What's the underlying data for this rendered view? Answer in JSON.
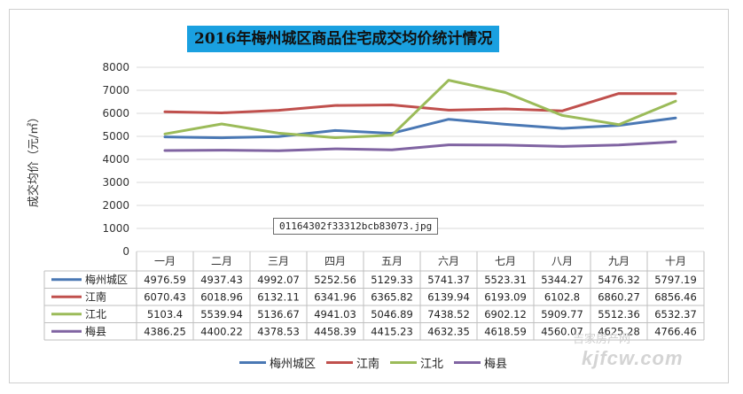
{
  "chart_data": {
    "type": "line",
    "title": "2016年梅州城区商品住宅成交均价统计情况",
    "ylabel": "成交均价（元/㎡）",
    "ylim": [
      0,
      8000
    ],
    "yticks": [
      0,
      1000,
      2000,
      3000,
      4000,
      5000,
      6000,
      7000,
      8000
    ],
    "grid": true,
    "legend_position": "bottom",
    "categories": [
      "一月",
      "二月",
      "三月",
      "四月",
      "五月",
      "六月",
      "七月",
      "八月",
      "九月",
      "十月"
    ],
    "series": [
      {
        "name": "梅州城区",
        "color": "#4a78b4",
        "values": [
          4976.59,
          4937.43,
          4992.07,
          5252.56,
          5129.33,
          5741.37,
          5523.31,
          5344.27,
          5476.32,
          5797.19
        ],
        "labels": [
          "4976.59",
          "4937.43",
          "4992.07",
          "5252.56",
          "5129.33",
          "5741.37",
          "5523.31",
          "5344.27",
          "5476.32",
          "5797.19"
        ]
      },
      {
        "name": "江南",
        "color": "#c0504d",
        "values": [
          6070.43,
          6018.96,
          6132.11,
          6341.96,
          6365.82,
          6139.94,
          6193.09,
          6102.8,
          6860.27,
          6856.46
        ],
        "labels": [
          "6070.43",
          "6018.96",
          "6132.11",
          "6341.96",
          "6365.82",
          "6139.94",
          "6193.09",
          "6102.8",
          "6860.27",
          "6856.46"
        ]
      },
      {
        "name": "江北",
        "color": "#9bbb59",
        "values": [
          5103.4,
          5539.94,
          5136.67,
          4941.03,
          5046.89,
          7438.52,
          6902.12,
          5909.77,
          5512.36,
          6532.37
        ],
        "labels": [
          "5103.4",
          "5539.94",
          "5136.67",
          "4941.03",
          "5046.89",
          "7438.52",
          "6902.12",
          "5909.77",
          "5512.36",
          "6532.37"
        ]
      },
      {
        "name": "梅县",
        "color": "#8064a2",
        "values": [
          4386.25,
          4400.22,
          4378.53,
          4458.39,
          4415.23,
          4632.35,
          4618.59,
          4560.07,
          4625.28,
          4766.46
        ],
        "labels": [
          "4386.25",
          "4400.22",
          "4378.53",
          "4458.39",
          "4415.23",
          "4632.35",
          "4618.59",
          "4560.07",
          "4625.28",
          "4766.46"
        ]
      }
    ]
  },
  "caption": "01164302f33312bcb83073.jpg",
  "watermark": {
    "line1": "吉家房产网",
    "line2": "kjfcw.com"
  }
}
